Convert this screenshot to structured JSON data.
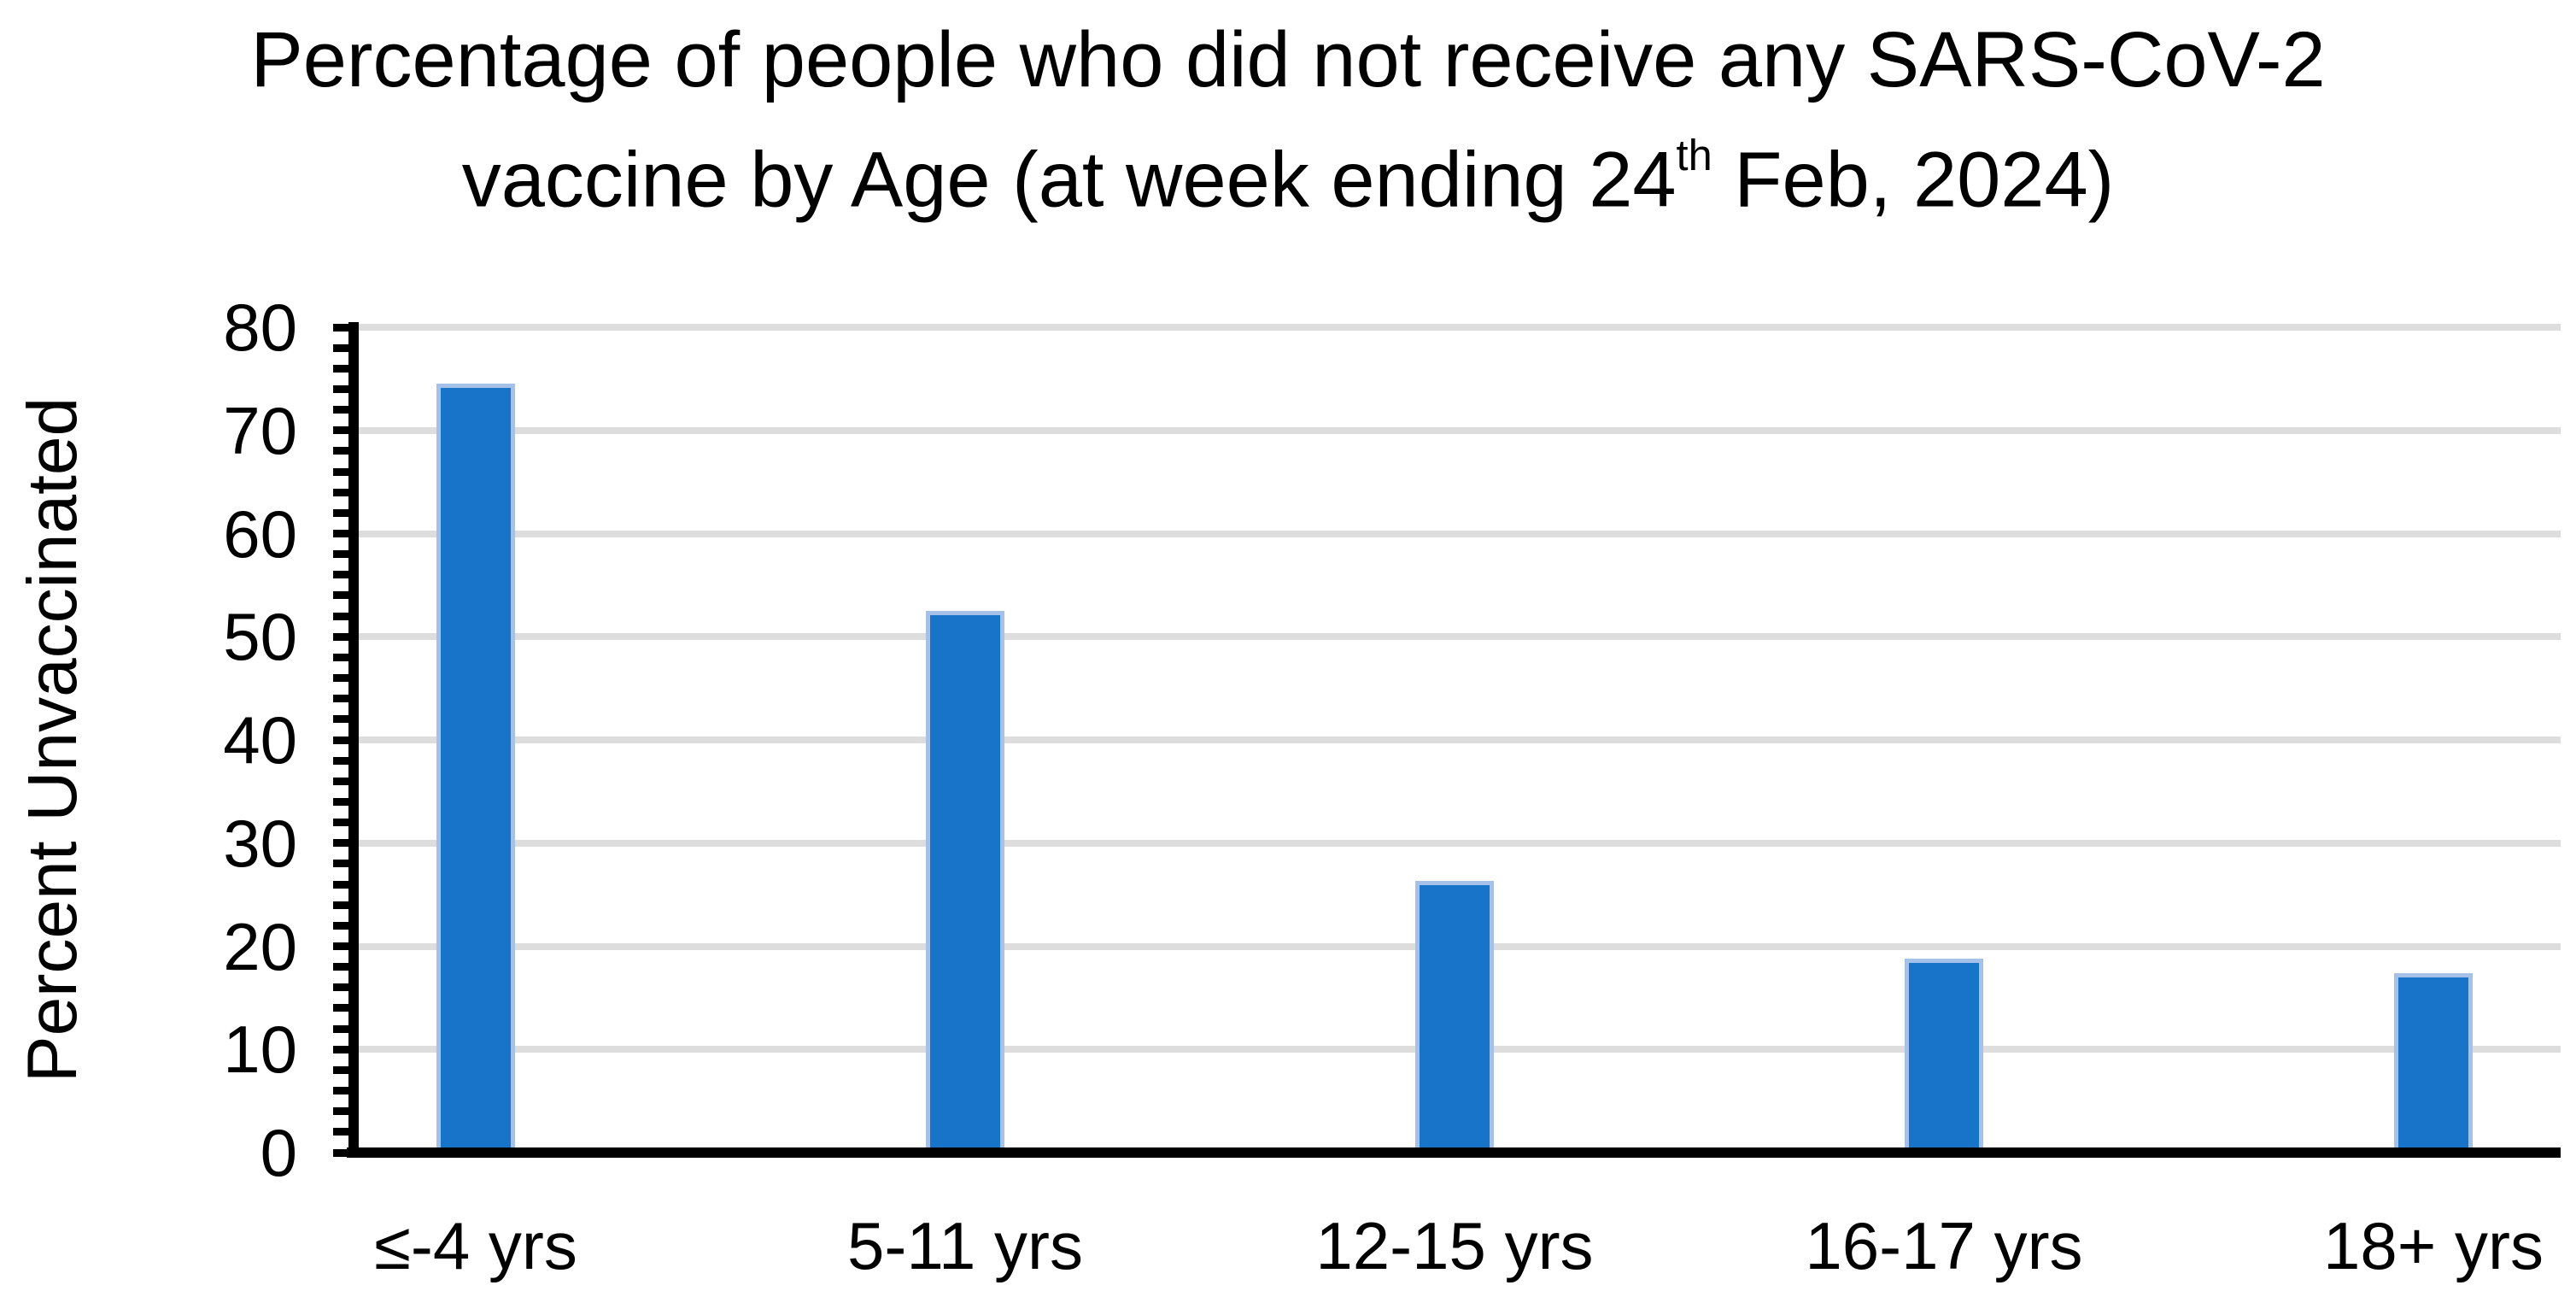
{
  "title": {
    "line1": "Percentage of people who did not receive any SARS-CoV-2",
    "line2_prefix": "vaccine by Age (at week ending 24",
    "line2_sup": "th",
    "line2_suffix": " Feb, 2024)"
  },
  "y_axis": {
    "label": "Percent Unvaccinated",
    "ticks": [
      0,
      10,
      20,
      30,
      40,
      50,
      60,
      70,
      80
    ]
  },
  "chart_data": {
    "type": "bar",
    "title": "Percentage of people who did not receive any SARS-CoV-2 vaccine by Age (at week ending 24th Feb, 2024)",
    "categories": [
      "≤-4 yrs",
      "5-11 yrs",
      "12-15 yrs",
      "16-17 yrs",
      "18+ yrs"
    ],
    "values": [
      74.5,
      52.5,
      26.3,
      18.8,
      17.4
    ],
    "xlabel": "",
    "ylabel": "Percent Unvaccinated",
    "ylim": [
      0,
      80
    ],
    "ytick_interval": 10,
    "minor_tick_interval": 2,
    "grid": "horizontal-major",
    "legend": "none",
    "bar_color": "#1874C8",
    "bar_border_color": "#A6C1E7",
    "gridline_color": "#DDDDDD",
    "axis_color": "#000000",
    "text_color": "#000000"
  }
}
